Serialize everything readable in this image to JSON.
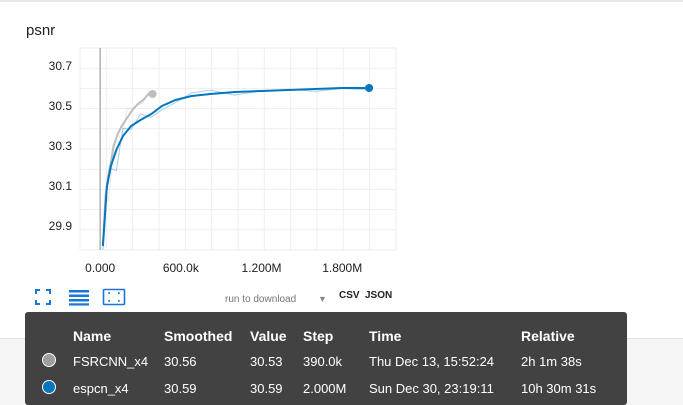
{
  "card": {
    "title": "psnr"
  },
  "chart_data": {
    "type": "line",
    "title": "psnr",
    "xlabel": "",
    "ylabel": "",
    "xlim": [
      -150000,
      2200000
    ],
    "ylim": [
      29.78,
      30.79
    ],
    "x_ticks": [
      0,
      600000,
      1200000,
      1800000
    ],
    "x_tick_labels": [
      "0.000",
      "600.0k",
      "1.200M",
      "1.800M"
    ],
    "y_ticks": [
      29.9,
      30.1,
      30.3,
      30.5,
      30.7
    ],
    "y_tick_labels": [
      "29.9",
      "30.1",
      "30.3",
      "30.5",
      "30.7"
    ],
    "grid": true,
    "series": [
      {
        "name": "FSRCNN_x4",
        "color": "#bdbdbd",
        "x": [
          20000,
          40000,
          60000,
          80000,
          100000,
          130000,
          160000,
          200000,
          240000,
          280000,
          320000,
          360000,
          390000
        ],
        "y": [
          29.8,
          30.05,
          30.15,
          30.22,
          30.3,
          30.36,
          30.4,
          30.44,
          30.48,
          30.51,
          30.53,
          30.56,
          30.56
        ]
      },
      {
        "name": "espcn_x4",
        "color": "#0277bd",
        "x": [
          20000,
          50000,
          80000,
          120000,
          170000,
          230000,
          300000,
          380000,
          460000,
          560000,
          680000,
          820000,
          1000000,
          1200000,
          1400000,
          1600000,
          1800000,
          2000000
        ],
        "y": [
          29.8,
          30.1,
          30.2,
          30.28,
          30.35,
          30.4,
          30.43,
          30.46,
          30.5,
          30.53,
          30.55,
          30.56,
          30.57,
          30.575,
          30.58,
          30.585,
          30.59,
          30.59
        ]
      }
    ]
  },
  "controls": {
    "expand_icon": "expand-icon",
    "data_icon": "data-table-icon",
    "fit_icon": "fit-domain-icon",
    "download_label": "run to download",
    "csv_label": "CSV",
    "json_label": "JSON"
  },
  "tooltip": {
    "headers": [
      "Name",
      "Smoothed",
      "Value",
      "Step",
      "Time",
      "Relative"
    ],
    "rows": [
      {
        "color": "#9e9e9e",
        "name": "FSRCNN_x4",
        "smoothed": "30.56",
        "value": "30.53",
        "step": "390.0k",
        "time": "Thu Dec 13, 15:52:24",
        "relative": "2h 1m 38s"
      },
      {
        "color": "#0277bd",
        "name": "espcn_x4",
        "smoothed": "30.59",
        "value": "30.59",
        "step": "2.000M",
        "time": "Sun Dec 30, 23:19:11",
        "relative": "10h 30m 31s"
      }
    ]
  }
}
